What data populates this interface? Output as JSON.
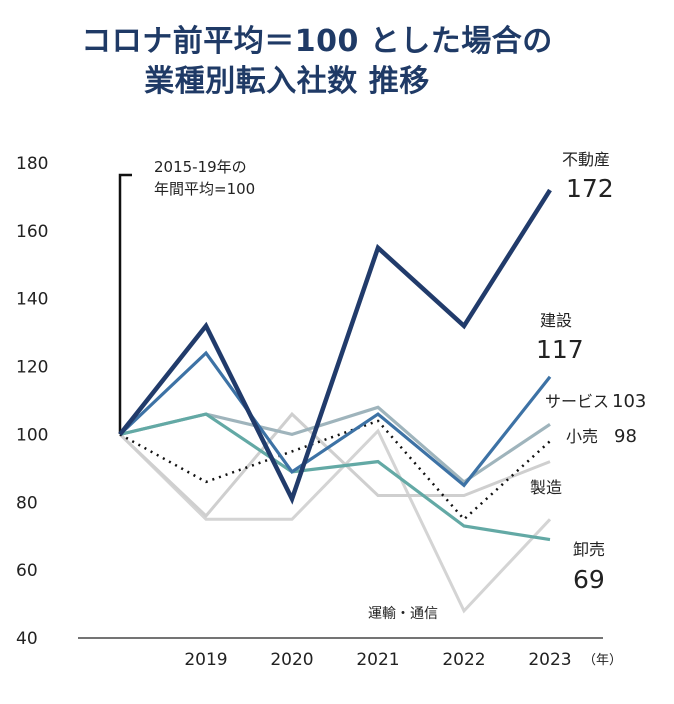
{
  "title_lines": [
    "コロナ前平均＝100 とした場合の",
    "業種別転入社数 推移"
  ],
  "chart_data": {
    "type": "line",
    "title": "コロナ前平均＝100 とした場合の 業種別転入社数 推移",
    "xlabel": "",
    "x_unit": "（年）",
    "ylabel": "",
    "ylim": [
      40,
      180
    ],
    "yticks": [
      40,
      60,
      80,
      100,
      120,
      140,
      160,
      180
    ],
    "categories": [
      "",
      "2019",
      "2020",
      "2021",
      "2022",
      "2023"
    ],
    "baseline_note": [
      "2015-19年の",
      "年間平均=100"
    ],
    "series": [
      {
        "name": "不動産",
        "label_value": "172",
        "color": "#213b6b",
        "width": 4.5,
        "dash": "",
        "values": [
          100,
          132,
          81,
          155,
          132,
          172
        ]
      },
      {
        "name": "建設",
        "label_value": "117",
        "color": "#3d72a5",
        "width": 3.2,
        "dash": "",
        "values": [
          100,
          124,
          89,
          106,
          85,
          117
        ]
      },
      {
        "name": "サービス",
        "label_value": "103",
        "color": "#9fb4bc",
        "width": 3.2,
        "dash": "",
        "values": [
          100,
          106,
          100,
          108,
          86,
          103
        ]
      },
      {
        "name": "小売",
        "label_value": "98",
        "color": "#111111",
        "width": 2.5,
        "dash": "2,5",
        "values": [
          100,
          86,
          95,
          104,
          75,
          98
        ]
      },
      {
        "name": "製造",
        "label_value": "",
        "color": "#cfcfcf",
        "width": 3,
        "dash": "",
        "values": [
          100,
          76,
          106,
          82,
          82,
          92
        ]
      },
      {
        "name": "卸売",
        "label_value": "69",
        "color": "#63a9a5",
        "width": 3.2,
        "dash": "",
        "values": [
          100,
          106,
          89,
          92,
          73,
          69
        ]
      },
      {
        "name": "運輸・通信",
        "label_value": "",
        "color": "#d4d4d4",
        "width": 3,
        "dash": "",
        "values": [
          100,
          75,
          75,
          101,
          48,
          75
        ]
      }
    ]
  }
}
